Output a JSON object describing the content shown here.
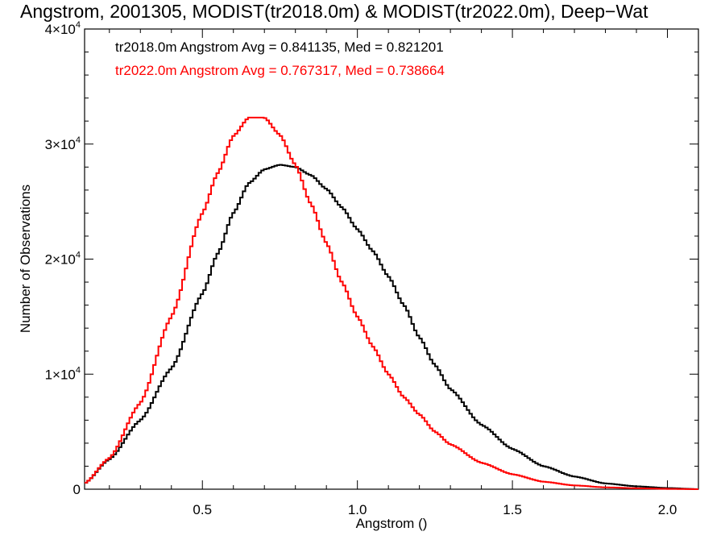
{
  "chart_data": {
    "type": "line",
    "title": "Angstrom, 2001305, MODIST(tr2018.0m) & MODIST(tr2022.0m), Deep−Wat",
    "xlabel": "Angstrom ()",
    "ylabel": "Number of Observations",
    "xlim": [
      0.12,
      2.1
    ],
    "ylim": [
      0,
      40000
    ],
    "x_ticks": [
      {
        "value": 0.5,
        "label": "0.5"
      },
      {
        "value": 1.0,
        "label": "1.0"
      },
      {
        "value": 1.5,
        "label": "1.5"
      },
      {
        "value": 2.0,
        "label": "2.0"
      }
    ],
    "y_ticks": [
      {
        "value": 0,
        "mantissa": "0",
        "exp": ""
      },
      {
        "value": 10000,
        "mantissa": "1×10",
        "exp": "4"
      },
      {
        "value": 20000,
        "mantissa": "2×10",
        "exp": "4"
      },
      {
        "value": 30000,
        "mantissa": "3×10",
        "exp": "4"
      },
      {
        "value": 40000,
        "mantissa": "4×10",
        "exp": "4"
      }
    ],
    "legend": {
      "placement": "top-left",
      "entries": [
        "tr2018.0m Angstrom Avg = 0.841135, Med = 0.821201",
        "tr2022.0m Angstrom Avg = 0.767317, Med = 0.738664"
      ]
    },
    "grid": false,
    "series": [
      {
        "name": "tr2018.0m",
        "color": "#000000",
        "style": "step",
        "x": [
          0.12,
          0.2,
          0.3,
          0.4,
          0.5,
          0.55,
          0.6,
          0.65,
          0.7,
          0.75,
          0.8,
          0.85,
          0.9,
          0.95,
          1.0,
          1.05,
          1.1,
          1.15,
          1.2,
          1.25,
          1.3,
          1.4,
          1.5,
          1.6,
          1.7,
          1.8,
          1.9,
          2.0,
          2.1
        ],
        "y": [
          500,
          2600,
          6000,
          10500,
          17000,
          20500,
          24000,
          26600,
          27800,
          28200,
          28000,
          27300,
          26100,
          24500,
          22600,
          20700,
          18500,
          16000,
          13200,
          10800,
          8700,
          5600,
          3500,
          2000,
          1100,
          500,
          250,
          100,
          0
        ]
      },
      {
        "name": "tr2022.0m",
        "color": "#ff0000",
        "style": "step",
        "x": [
          0.12,
          0.2,
          0.3,
          0.4,
          0.5,
          0.55,
          0.6,
          0.65,
          0.7,
          0.75,
          0.8,
          0.85,
          0.9,
          0.95,
          1.0,
          1.05,
          1.1,
          1.15,
          1.2,
          1.25,
          1.3,
          1.4,
          1.5,
          1.6,
          1.7,
          1.8,
          1.9,
          2.0,
          2.1
        ],
        "y": [
          500,
          2700,
          7500,
          15000,
          24000,
          27500,
          30700,
          32300,
          32300,
          30800,
          28200,
          24800,
          21400,
          18000,
          15000,
          12400,
          10000,
          8000,
          6500,
          5000,
          3900,
          2300,
          1300,
          650,
          330,
          160,
          80,
          30,
          0
        ]
      }
    ]
  }
}
